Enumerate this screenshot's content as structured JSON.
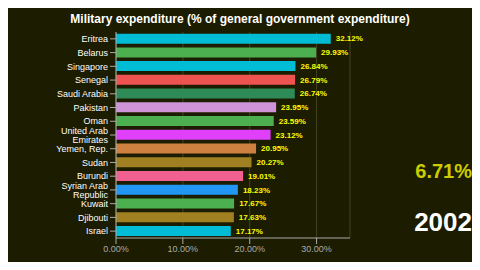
{
  "chart_data": {
    "type": "bar",
    "orientation": "horizontal",
    "title": "Military expenditure (% of general government expenditure)",
    "categories": [
      "Eritrea",
      "Belarus",
      "Singapore",
      "Senegal",
      "Saudi Arabia",
      "Pakistan",
      "Oman",
      "United Arab Emirates",
      "Yemen, Rep.",
      "Sudan",
      "Burundi",
      "Syrian Arab Republic",
      "Kuwait",
      "Djibouti",
      "Israel"
    ],
    "values": [
      32.12,
      29.93,
      26.84,
      26.79,
      26.74,
      23.95,
      23.59,
      23.12,
      20.95,
      20.27,
      19.01,
      18.23,
      17.67,
      17.63,
      17.17
    ],
    "value_labels": [
      "32.12%",
      "29.93%",
      "26.84%",
      "26.79%",
      "26.74%",
      "23.95%",
      "23.59%",
      "23.12%",
      "20.95%",
      "20.27%",
      "19.01%",
      "18.23%",
      "17.67%",
      "17.63%",
      "17.17%"
    ],
    "data_labels": true,
    "colors": [
      "#00bcd4",
      "#4caf50",
      "#00bcd4",
      "#ef5350",
      "#2e8b57",
      "#ce93d8",
      "#4caf50",
      "#e040fb",
      "#cd8040",
      "#a08020",
      "#f06090",
      "#2196f3",
      "#4caf50",
      "#a08020",
      "#00bcd4"
    ],
    "xlim": [
      0,
      35
    ],
    "xticks": [
      {
        "value": 0,
        "label": "0.00%"
      },
      {
        "value": 10,
        "label": "10.00%"
      },
      {
        "value": 20,
        "label": "20.00%"
      },
      {
        "value": 30,
        "label": "30.00%"
      }
    ],
    "grid": true,
    "annotations": [
      "6.71%",
      "2002"
    ]
  }
}
